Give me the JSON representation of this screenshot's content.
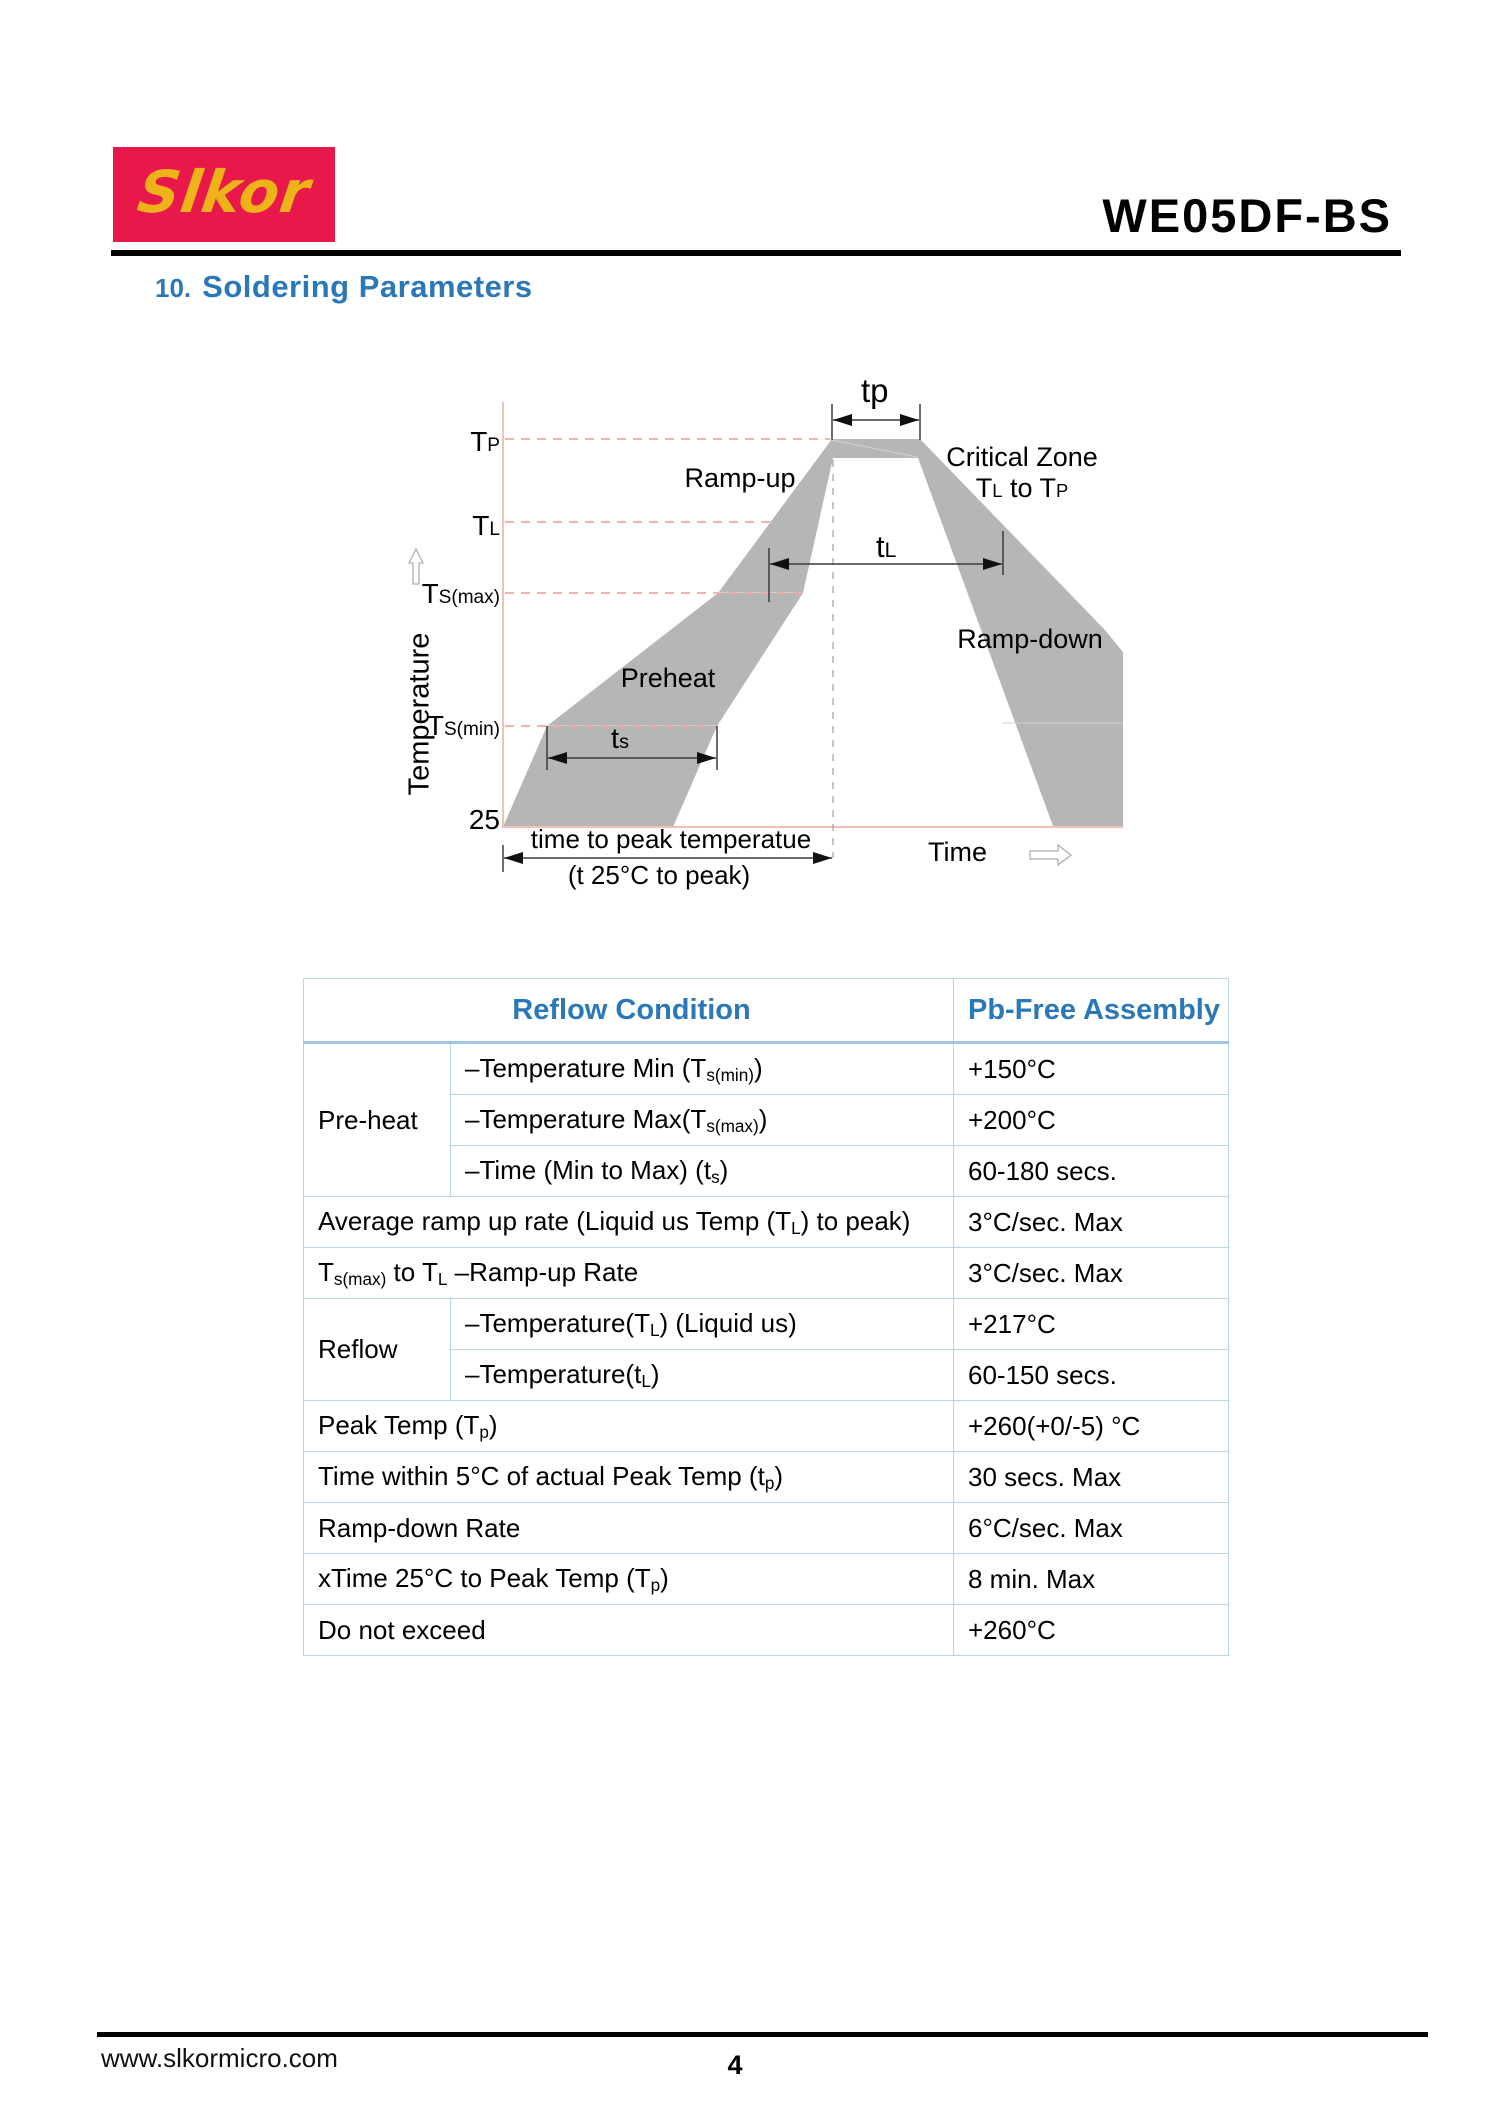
{
  "header": {
    "logo_text": "Slkor",
    "logo_bg_color": "#e8194a",
    "logo_text_color": "#efb31a",
    "part_number": "WE05DF-BS"
  },
  "section": {
    "number": "10.",
    "title": "Soldering Parameters",
    "accent_color": "#2b78b8"
  },
  "diagram": {
    "colors": {
      "band": "#b6b6b6",
      "guide_dash": "#f2aaa3",
      "axis_line": "#f6beb8",
      "dimension": "#3a3a3a"
    },
    "y_axis": {
      "tp": [
        [
          "T",
          ""
        ],
        [
          "P",
          "sm"
        ]
      ],
      "tl": [
        [
          "T",
          ""
        ],
        [
          "L",
          "sm"
        ]
      ],
      "tsmax": [
        [
          "T",
          ""
        ],
        [
          "S(max)",
          "sm"
        ]
      ],
      "tsmin": [
        [
          "T",
          ""
        ],
        [
          "S(min)",
          "sm"
        ]
      ],
      "origin": "25",
      "axis_title": "Temperature"
    },
    "x_axis": {
      "axis_title": "Time"
    },
    "annotations": {
      "tp": [
        [
          "t",
          ""
        ],
        [
          "p",
          ""
        ]
      ],
      "ramp_up": "Ramp-up",
      "critical_zone_1": "Critical Zone",
      "critical_zone_2": [
        [
          "T",
          ""
        ],
        [
          "L",
          "sm"
        ],
        [
          " to T",
          ""
        ],
        [
          "P",
          "sm"
        ]
      ],
      "tl": [
        [
          "t",
          ""
        ],
        [
          "L",
          "sm"
        ]
      ],
      "ramp_down": "Ramp-down",
      "preheat": "Preheat",
      "ts": [
        [
          "t",
          ""
        ],
        [
          "s",
          "sm"
        ]
      ],
      "time_to_peak_1": "time to peak temperatue",
      "time_to_peak_2": "(t 25°C to peak)"
    }
  },
  "table": {
    "border_color": "#b8d4ea",
    "header": {
      "condition": "Reflow Condition",
      "assembly": "Pb-Free Assembly"
    },
    "rows": [
      {
        "group": "Pre-heat",
        "condition": [
          [
            "–Temperature Min (T",
            ""
          ],
          [
            "s(min)",
            "sub"
          ],
          [
            ")",
            ""
          ]
        ],
        "value": "+150°C"
      },
      {
        "condition": [
          [
            "–Temperature Max(T",
            ""
          ],
          [
            "s(max)",
            "sub"
          ],
          [
            ")",
            ""
          ]
        ],
        "value": "+200°C"
      },
      {
        "condition": [
          [
            "–Time (Min to Max) (t",
            ""
          ],
          [
            "s",
            "sub"
          ],
          [
            ")",
            ""
          ]
        ],
        "value": "60-180 secs."
      },
      {
        "condition": [
          [
            "Average ramp up rate (Liquid us Temp (T",
            ""
          ],
          [
            "L",
            "sub"
          ],
          [
            ") to peak)",
            ""
          ]
        ],
        "value": "3°C/sec. Max"
      },
      {
        "condition": [
          [
            "T",
            ""
          ],
          [
            "s(max)",
            "sub"
          ],
          [
            " to T",
            ""
          ],
          [
            "L",
            "sub"
          ],
          [
            " –Ramp-up Rate",
            ""
          ]
        ],
        "value": "3°C/sec. Max"
      },
      {
        "group": "Reflow",
        "condition": [
          [
            "–Temperature(T",
            ""
          ],
          [
            "L",
            "sub"
          ],
          [
            ") (Liquid us)",
            ""
          ]
        ],
        "value": "+217°C"
      },
      {
        "condition": [
          [
            "–Temperature(t",
            ""
          ],
          [
            "L",
            "sub"
          ],
          [
            ")",
            ""
          ]
        ],
        "value": "60-150 secs."
      },
      {
        "condition": [
          [
            "Peak Temp (T",
            ""
          ],
          [
            "p",
            "sub"
          ],
          [
            ")",
            ""
          ]
        ],
        "value": "+260(+0/-5) °C"
      },
      {
        "condition": [
          [
            "Time within 5°C of actual Peak Temp (t",
            ""
          ],
          [
            "p",
            "sub"
          ],
          [
            ")",
            ""
          ]
        ],
        "value": "30 secs. Max"
      },
      {
        "condition": [
          [
            "Ramp-down Rate",
            ""
          ]
        ],
        "value": "6°C/sec. Max"
      },
      {
        "condition": [
          [
            "xTime 25°C to Peak Temp (T",
            ""
          ],
          [
            "p",
            "sub"
          ],
          [
            ")",
            ""
          ]
        ],
        "value": "8 min. Max"
      },
      {
        "condition": [
          [
            "Do not exceed",
            ""
          ]
        ],
        "value": "+260°C"
      }
    ]
  },
  "footer": {
    "website": "www.slkormicro.com",
    "page_number": "4"
  }
}
